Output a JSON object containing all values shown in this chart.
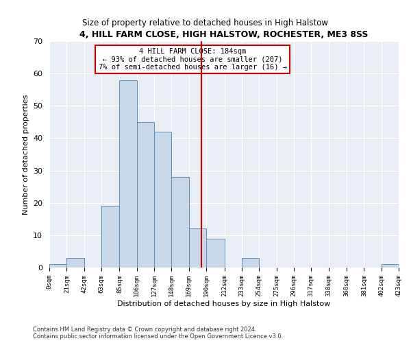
{
  "title": "4, HILL FARM CLOSE, HIGH HALSTOW, ROCHESTER, ME3 8SS",
  "subtitle": "Size of property relative to detached houses in High Halstow",
  "xlabel": "Distribution of detached houses by size in High Halstow",
  "ylabel": "Number of detached properties",
  "property_size": 184,
  "annotation_line1": "4 HILL FARM CLOSE: 184sqm",
  "annotation_line2": "← 93% of detached houses are smaller (207)",
  "annotation_line3": "7% of semi-detached houses are larger (16) →",
  "bin_edges": [
    0,
    21,
    42,
    63,
    85,
    106,
    127,
    148,
    169,
    190,
    212,
    233,
    254,
    275,
    296,
    317,
    338,
    360,
    381,
    402,
    423
  ],
  "bar_heights": [
    1,
    3,
    0,
    19,
    58,
    45,
    42,
    28,
    12,
    9,
    0,
    3,
    0,
    0,
    0,
    0,
    0,
    0,
    0,
    1
  ],
  "bar_color": "#c8d8e8",
  "bar_edge_color": "#5b8db8",
  "vline_x": 184,
  "vline_color": "#cc0000",
  "annotation_box_color": "#cc0000",
  "ylim": [
    0,
    70
  ],
  "yticks": [
    0,
    10,
    20,
    30,
    40,
    50,
    60,
    70
  ],
  "plot_bg_color": "#e8eef4",
  "footer_line1": "Contains HM Land Registry data © Crown copyright and database right 2024.",
  "footer_line2": "Contains public sector information licensed under the Open Government Licence v3.0."
}
